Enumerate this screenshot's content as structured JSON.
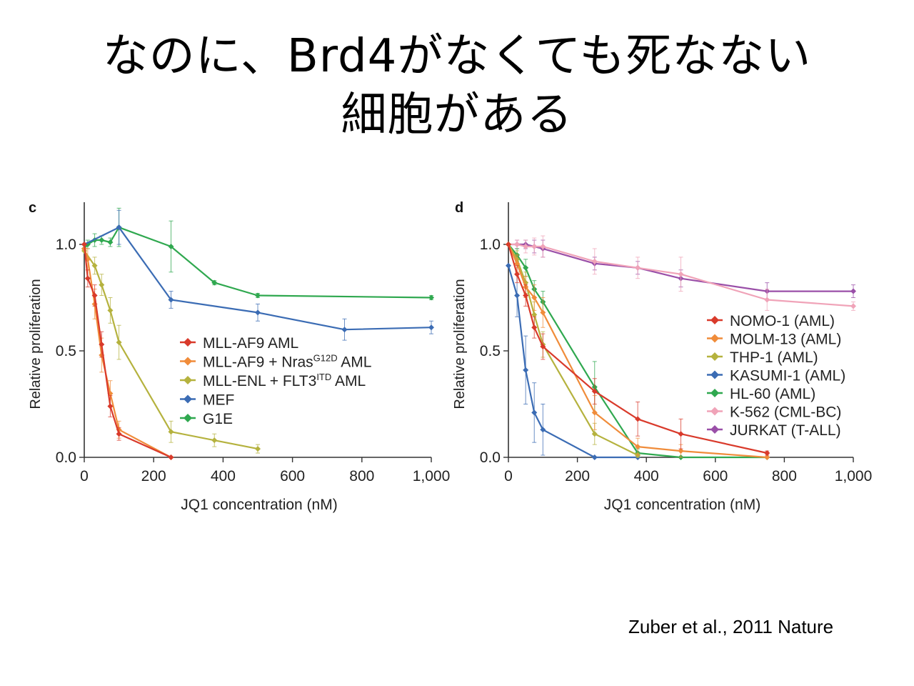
{
  "slide": {
    "title_line1": "なのに、Brd4がなくても死なない",
    "title_line2": "細胞がある",
    "citation": "Zuber et al., 2011 Nature"
  },
  "chart_data": [
    {
      "panel": "c",
      "type": "line",
      "xlabel": "JQ1 concentration (nM)",
      "ylabel": "Relative proliferation",
      "xlim": [
        0,
        1000
      ],
      "ylim": [
        0,
        1.2
      ],
      "xticks": [
        0,
        200,
        400,
        600,
        800,
        1000
      ],
      "xtick_labels": [
        "0",
        "200",
        "400",
        "600",
        "800",
        "1,000"
      ],
      "yticks": [
        0,
        0.5,
        1.0
      ],
      "ytick_labels": [
        "0.0",
        "0.5",
        "1.0"
      ],
      "legend_position": "center-right",
      "series": [
        {
          "name": "MLL-AF9 AML",
          "color": "#d93a2b",
          "x": [
            0,
            10,
            30,
            50,
            75,
            100,
            250
          ],
          "y": [
            1.0,
            0.84,
            0.76,
            0.53,
            0.24,
            0.11,
            0.0
          ],
          "err": [
            0,
            0.04,
            0.05,
            0.06,
            0.05,
            0.03,
            0
          ]
        },
        {
          "name": "MLL-AF9 + NrasG12D AML",
          "name_base": "MLL-AF9 + Nras",
          "name_sup": "G12D",
          "name_tail": " AML",
          "color": "#f08c3a",
          "x": [
            0,
            10,
            30,
            50,
            75,
            100,
            250
          ],
          "y": [
            0.98,
            0.93,
            0.72,
            0.48,
            0.3,
            0.13,
            0.0
          ],
          "err": [
            0,
            0.05,
            0.07,
            0.08,
            0.06,
            0.04,
            0
          ]
        },
        {
          "name": "MLL-ENL + FLT3ITD AML",
          "name_base": "MLL-ENL + FLT3",
          "name_sup": "ITD",
          "name_tail": " AML",
          "color": "#b5b23e",
          "x": [
            0,
            30,
            50,
            75,
            100,
            250,
            375,
            500
          ],
          "y": [
            0.97,
            0.9,
            0.81,
            0.69,
            0.54,
            0.12,
            0.08,
            0.04
          ],
          "err": [
            0,
            0.04,
            0.05,
            0.06,
            0.08,
            0.05,
            0.03,
            0.02
          ]
        },
        {
          "name": "MEF",
          "color": "#3b6cb4",
          "x": [
            0,
            100,
            250,
            500,
            750,
            1000
          ],
          "y": [
            1.0,
            1.08,
            0.74,
            0.68,
            0.6,
            0.61
          ],
          "err": [
            0,
            0.08,
            0.04,
            0.04,
            0.05,
            0.03
          ]
        },
        {
          "name": "G1E",
          "color": "#2fa84f",
          "x": [
            0,
            10,
            30,
            50,
            75,
            100,
            250,
            375,
            500,
            1000
          ],
          "y": [
            0.98,
            1.0,
            1.02,
            1.02,
            1.01,
            1.08,
            0.99,
            0.82,
            0.76,
            0.75
          ],
          "err": [
            0,
            0.02,
            0.03,
            0.02,
            0.02,
            0.09,
            0.12,
            0.01,
            0.01,
            0.01
          ]
        }
      ]
    },
    {
      "panel": "d",
      "type": "line",
      "xlabel": "JQ1 concentration (nM)",
      "ylabel": "Relative proliferation",
      "xlim": [
        0,
        1000
      ],
      "ylim": [
        0,
        1.2
      ],
      "xticks": [
        0,
        200,
        400,
        600,
        800,
        1000
      ],
      "xtick_labels": [
        "0",
        "200",
        "400",
        "600",
        "800",
        "1,000"
      ],
      "yticks": [
        0,
        0.5,
        1.0
      ],
      "ytick_labels": [
        "0.0",
        "0.5",
        "1.0"
      ],
      "legend_position": "center-right",
      "series": [
        {
          "name": "NOMO-1 (AML)",
          "color": "#d93a2b",
          "x": [
            0,
            25,
            50,
            75,
            100,
            250,
            375,
            500,
            750
          ],
          "y": [
            1.0,
            0.86,
            0.76,
            0.61,
            0.52,
            0.31,
            0.18,
            0.11,
            0.02
          ],
          "err": [
            0,
            0.04,
            0.05,
            0.05,
            0.06,
            0.06,
            0.08,
            0.07,
            0.01
          ]
        },
        {
          "name": "MOLM-13 (AML)",
          "color": "#f08c3a",
          "x": [
            0,
            25,
            50,
            75,
            100,
            250,
            375,
            500,
            750
          ],
          "y": [
            1.0,
            0.91,
            0.8,
            0.75,
            0.68,
            0.21,
            0.05,
            0.03,
            0.0
          ],
          "err": [
            0,
            0.04,
            0.05,
            0.06,
            0.07,
            0.08,
            0.04,
            0.03,
            0
          ]
        },
        {
          "name": "THP-1 (AML)",
          "color": "#b5b23e",
          "x": [
            0,
            25,
            50,
            75,
            100,
            250,
            375
          ],
          "y": [
            1.0,
            0.93,
            0.82,
            0.67,
            0.53,
            0.11,
            0.01
          ],
          "err": [
            0,
            0.04,
            0.05,
            0.06,
            0.06,
            0.05,
            0.01
          ]
        },
        {
          "name": "KASUMI-1 (AML)",
          "color": "#3b6cb4",
          "x": [
            0,
            25,
            50,
            75,
            100,
            250,
            375
          ],
          "y": [
            0.9,
            0.76,
            0.41,
            0.21,
            0.13,
            0.0,
            0.0
          ],
          "err": [
            0,
            0.1,
            0.16,
            0.14,
            0.12,
            0,
            0
          ]
        },
        {
          "name": "HL-60 (AML)",
          "color": "#2fa84f",
          "x": [
            0,
            25,
            50,
            75,
            100,
            250,
            375,
            500,
            750
          ],
          "y": [
            1.0,
            0.95,
            0.89,
            0.79,
            0.73,
            0.33,
            0.02,
            0.0,
            0.0
          ],
          "err": [
            0,
            0.03,
            0.04,
            0.04,
            0.05,
            0.12,
            0.02,
            0,
            0
          ]
        },
        {
          "name": "K-562 (CML-BC)",
          "color": "#f0a3b8",
          "x": [
            0,
            25,
            50,
            75,
            100,
            250,
            375,
            500,
            750,
            1000
          ],
          "y": [
            1.0,
            1.0,
            0.99,
            0.99,
            0.99,
            0.92,
            0.89,
            0.86,
            0.74,
            0.71
          ],
          "err": [
            0,
            0.02,
            0.03,
            0.04,
            0.05,
            0.06,
            0.05,
            0.08,
            0.05,
            0.02
          ]
        },
        {
          "name": "JURKAT (T-ALL)",
          "color": "#9a4fa8",
          "x": [
            0,
            25,
            50,
            75,
            100,
            250,
            375,
            500,
            750,
            1000
          ],
          "y": [
            1.0,
            1.0,
            1.0,
            0.99,
            0.98,
            0.91,
            0.89,
            0.84,
            0.78,
            0.78
          ],
          "err": [
            0,
            0.02,
            0.02,
            0.03,
            0.04,
            0.03,
            0.03,
            0.04,
            0.04,
            0.03
          ]
        }
      ]
    }
  ]
}
